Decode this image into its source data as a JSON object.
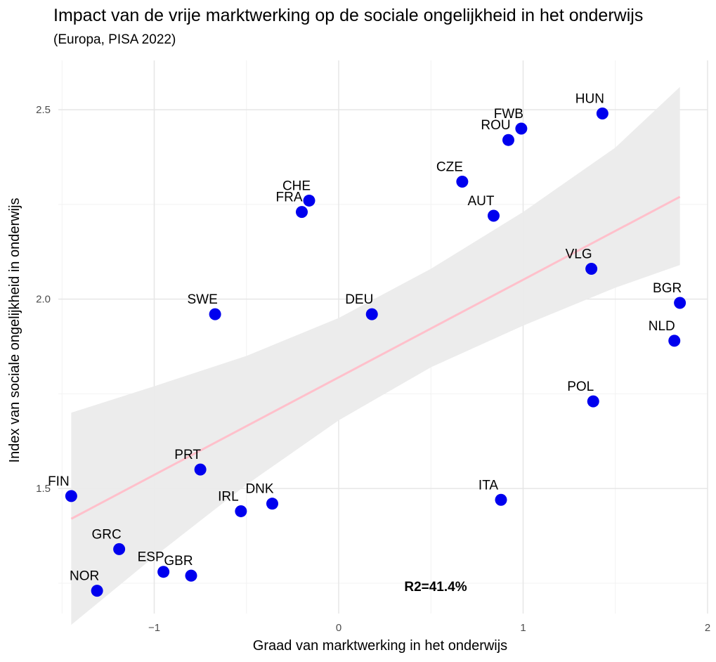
{
  "chart_data": {
    "type": "scatter",
    "title": "Impact van de vrije marktwerking op de sociale ongelijkheid in het onderwijs",
    "subtitle": "(Europa, PISA 2022)",
    "xlabel": "Graad van marktwerking in het onderwijs",
    "ylabel": "Index van sociale ongelijkheid in onderwijs",
    "xlim": [
      -1.52,
      2.0
    ],
    "ylim": [
      1.17,
      2.63
    ],
    "xticks": [
      -1,
      0,
      1,
      2
    ],
    "yticks": [
      1.5,
      2.0,
      2.5
    ],
    "xtick_labels": [
      "−1",
      "0",
      "1",
      "2"
    ],
    "ytick_labels": [
      "1.5",
      "2.0",
      "2.5"
    ],
    "grid": true,
    "point_color": "#0000ee",
    "fit_color": "#ffc0cb",
    "band_color": "#ebebeb",
    "points": [
      {
        "label": "HUN",
        "x": 1.43,
        "y": 2.49
      },
      {
        "label": "FWB",
        "x": 0.99,
        "y": 2.45
      },
      {
        "label": "ROU",
        "x": 0.92,
        "y": 2.42
      },
      {
        "label": "CZE",
        "x": 0.67,
        "y": 2.31
      },
      {
        "label": "CHE",
        "x": -0.16,
        "y": 2.26
      },
      {
        "label": "FRA",
        "x": -0.2,
        "y": 2.23
      },
      {
        "label": "AUT",
        "x": 0.84,
        "y": 2.22
      },
      {
        "label": "VLG",
        "x": 1.37,
        "y": 2.08
      },
      {
        "label": "BGR",
        "x": 1.85,
        "y": 1.99
      },
      {
        "label": "SWE",
        "x": -0.67,
        "y": 1.96
      },
      {
        "label": "DEU",
        "x": 0.18,
        "y": 1.96
      },
      {
        "label": "NLD",
        "x": 1.82,
        "y": 1.89
      },
      {
        "label": "POL",
        "x": 1.38,
        "y": 1.73
      },
      {
        "label": "PRT",
        "x": -0.75,
        "y": 1.55
      },
      {
        "label": "FIN",
        "x": -1.45,
        "y": 1.48
      },
      {
        "label": "ITA",
        "x": 0.88,
        "y": 1.47
      },
      {
        "label": "DNK",
        "x": -0.36,
        "y": 1.46
      },
      {
        "label": "IRL",
        "x": -0.53,
        "y": 1.44
      },
      {
        "label": "GRC",
        "x": -1.19,
        "y": 1.34
      },
      {
        "label": "ESP",
        "x": -0.95,
        "y": 1.28
      },
      {
        "label": "GBR",
        "x": -0.8,
        "y": 1.27
      },
      {
        "label": "NOR",
        "x": -1.31,
        "y": 1.23
      }
    ],
    "fit_line": {
      "x": [
        -1.45,
        1.85
      ],
      "y": [
        1.42,
        2.27
      ]
    },
    "confidence_band": {
      "x": [
        -1.45,
        -1.0,
        -0.5,
        0.0,
        0.5,
        1.0,
        1.5,
        1.85
      ],
      "lower": [
        1.14,
        1.32,
        1.51,
        1.68,
        1.82,
        1.93,
        2.03,
        2.09
      ],
      "upper": [
        1.7,
        1.77,
        1.85,
        1.95,
        2.08,
        2.23,
        2.4,
        2.56
      ]
    },
    "annotation": "R2=41.4%"
  }
}
